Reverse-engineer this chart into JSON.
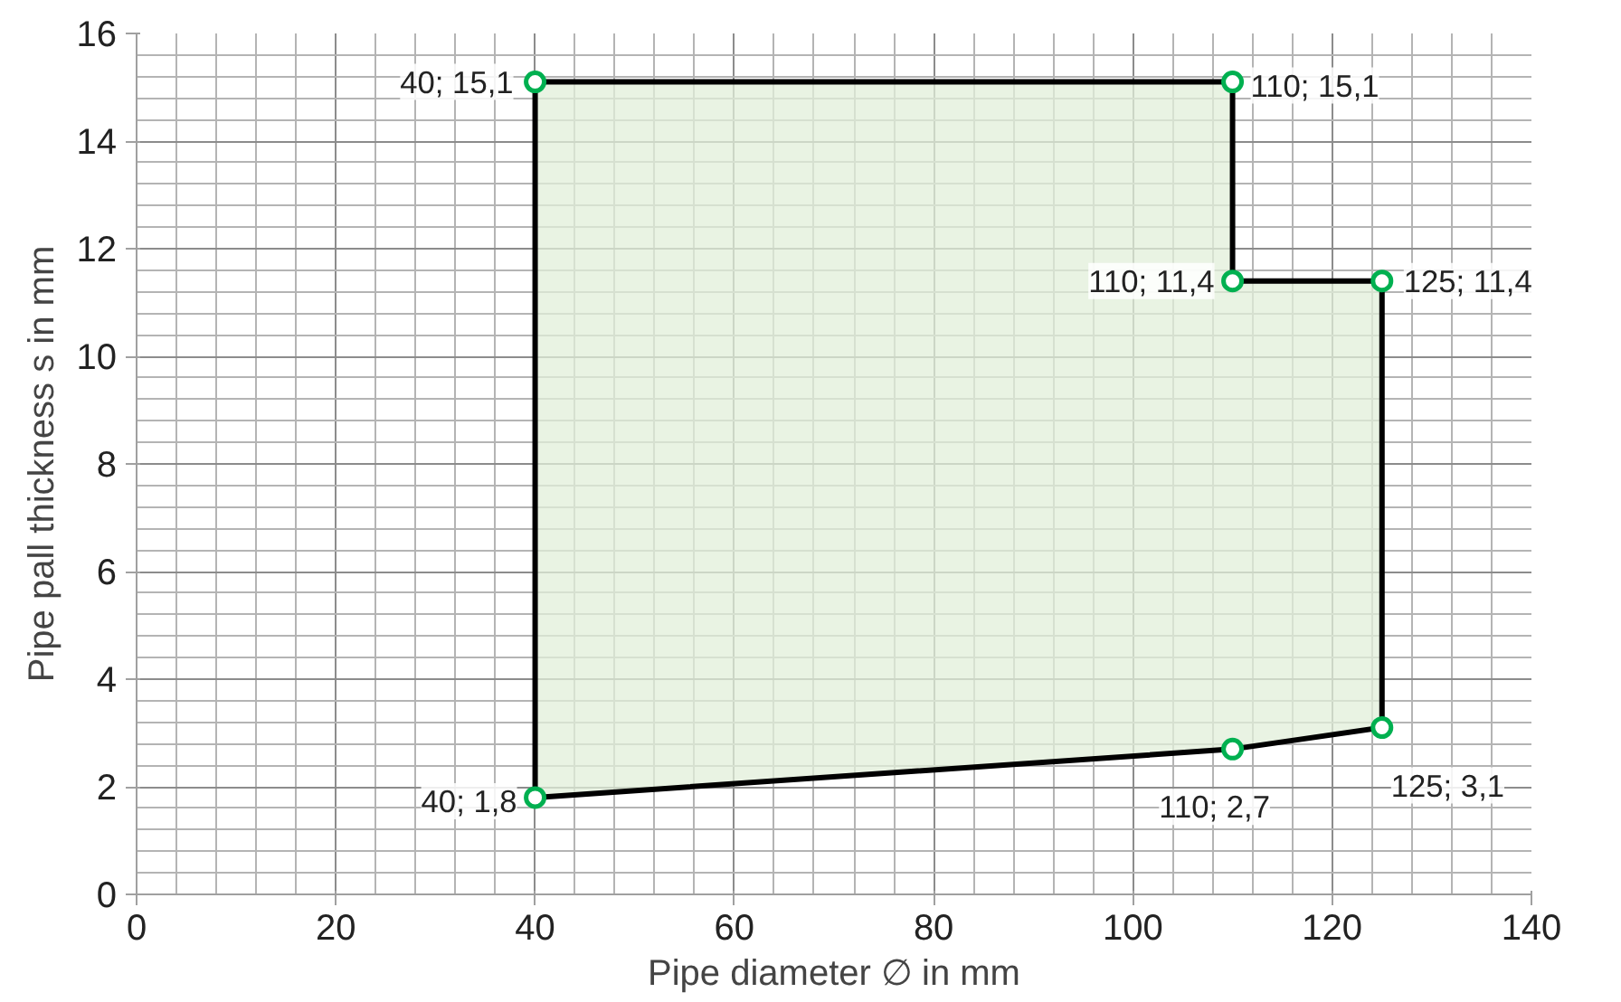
{
  "chart_data": {
    "type": "area",
    "xlabel": "Pipe diameter ∅ in mm",
    "ylabel": "Pipe pall thickness s in mm",
    "x": [
      40,
      110,
      125,
      125,
      110,
      110,
      40
    ],
    "series": [
      {
        "color": "#e2efd9",
        "values": [
          1.8,
          2.7,
          3.1,
          11.4,
          11.4,
          15.1,
          15.1
        ],
        "value_labels": [
          "40; 1,8",
          "110; 2,7",
          "125; 3,1",
          "125; 11,4",
          "110; 11,4",
          "110; 15,1",
          "40; 15,1"
        ]
      }
    ],
    "xlim": [
      0,
      140
    ],
    "xticks": [
      0,
      20,
      40,
      60,
      80,
      100,
      120,
      140
    ],
    "ylim": [
      0,
      16
    ],
    "yticks": [
      0,
      2,
      4,
      6,
      8,
      10,
      12,
      14,
      16
    ],
    "grid": true,
    "marker": "circle"
  }
}
